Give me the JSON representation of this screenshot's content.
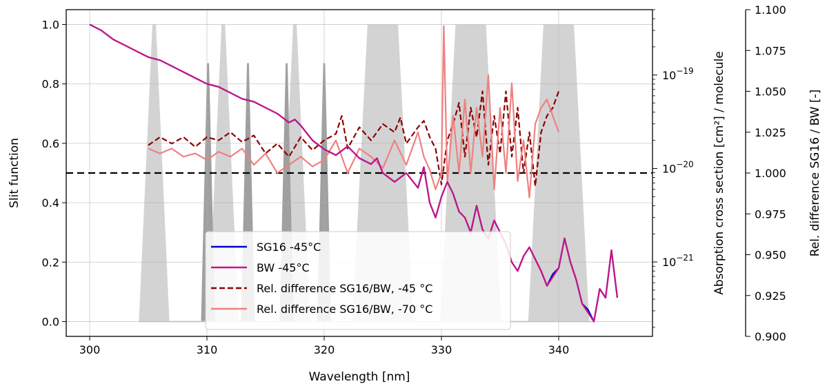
{
  "chart_data": {
    "type": "line",
    "xlabel": "Wavelength [nm]",
    "ylabel_left": "Slit function",
    "ylabel_mid": "Absorption cross section [cm²] / molecule",
    "ylabel_right": "Rel. difference SG16 / BW [-]",
    "xlim": [
      298,
      348
    ],
    "ylim_left": [
      -0.05,
      1.05
    ],
    "ylim_mid_log": [
      1.6e-22,
      5e-19
    ],
    "ylim_right": [
      0.9,
      1.1
    ],
    "grid": true,
    "legend_position": "lower-center",
    "x_ticks": [
      "300",
      "310",
      "320",
      "330",
      "340"
    ],
    "y_left_ticks": [
      "0.0",
      "0.2",
      "0.4",
      "0.6",
      "0.8",
      "1.0"
    ],
    "y_mid_ticks": [
      {
        "base": "10",
        "exp": "−19"
      },
      {
        "base": "10",
        "exp": "−20"
      },
      {
        "base": "10",
        "exp": "−21"
      }
    ],
    "y_right_ticks": [
      "0.900",
      "0.925",
      "0.950",
      "0.975",
      "1.000",
      "1.025",
      "1.050",
      "1.075",
      "1.100"
    ],
    "reference_line": {
      "axis": "right",
      "value": 1.0,
      "style": "dashed",
      "color": "#000000"
    },
    "slit_functions": [
      {
        "center": 305.5,
        "half_base": 1.3,
        "half_top": 0.15,
        "peak": 1.0,
        "color": "#d3d3d3"
      },
      {
        "center": 311.4,
        "half_base": 1.3,
        "half_top": 0.15,
        "peak": 1.0,
        "color": "#d3d3d3"
      },
      {
        "center": 317.5,
        "half_base": 1.3,
        "half_top": 0.15,
        "peak": 1.0,
        "color": "#d3d3d3"
      },
      {
        "center": 310.1,
        "half_base": 0.6,
        "half_top": 0.08,
        "peak": 0.87,
        "color": "#a0a0a0"
      },
      {
        "center": 313.5,
        "half_base": 0.6,
        "half_top": 0.08,
        "peak": 0.87,
        "color": "#a0a0a0"
      },
      {
        "center": 316.8,
        "half_base": 0.6,
        "half_top": 0.08,
        "peak": 0.87,
        "color": "#a0a0a0"
      },
      {
        "center": 320.0,
        "half_base": 0.6,
        "half_top": 0.08,
        "peak": 0.87,
        "color": "#a0a0a0"
      },
      {
        "center": 325.0,
        "half_base": 2.6,
        "half_top": 1.3,
        "peak": 1.0,
        "color": "#d3d3d3"
      },
      {
        "center": 332.5,
        "half_base": 2.6,
        "half_top": 1.3,
        "peak": 1.0,
        "color": "#d3d3d3"
      },
      {
        "center": 340.0,
        "half_base": 2.6,
        "half_top": 1.3,
        "peak": 1.0,
        "color": "#d3d3d3"
      }
    ],
    "series": [
      {
        "name": "SG16 -45°C",
        "axis": "left",
        "color": "#0000cc",
        "style": "solid",
        "x": [
          300,
          301,
          302,
          303,
          304,
          305,
          306,
          307,
          308,
          309,
          310,
          311,
          312,
          313,
          314,
          315,
          316,
          317,
          317.5,
          318,
          319,
          320,
          321,
          322,
          323,
          324,
          324.5,
          325,
          326,
          327,
          328,
          328.5,
          329,
          329.5,
          330,
          330.5,
          331,
          331.5,
          332,
          332.5,
          333,
          333.5,
          334,
          334.5,
          335,
          335.5,
          336,
          336.5,
          337,
          337.5,
          338,
          338.5,
          339,
          339.5,
          340,
          340.5,
          341,
          341.5,
          342,
          342.5,
          343,
          343.5,
          344,
          344.5,
          345
        ],
        "y": [
          1.0,
          0.98,
          0.95,
          0.93,
          0.91,
          0.89,
          0.88,
          0.86,
          0.84,
          0.82,
          0.8,
          0.79,
          0.77,
          0.75,
          0.74,
          0.72,
          0.7,
          0.67,
          0.68,
          0.66,
          0.61,
          0.58,
          0.56,
          0.59,
          0.55,
          0.53,
          0.55,
          0.5,
          0.47,
          0.5,
          0.45,
          0.52,
          0.4,
          0.35,
          0.42,
          0.47,
          0.43,
          0.37,
          0.35,
          0.3,
          0.39,
          0.31,
          0.28,
          0.34,
          0.3,
          0.26,
          0.2,
          0.17,
          0.22,
          0.25,
          0.21,
          0.17,
          0.12,
          0.16,
          0.18,
          0.28,
          0.2,
          0.14,
          0.06,
          0.04,
          0.0,
          0.11,
          0.08,
          0.24,
          0.08
        ],
        "mid_equiv_note": ""
      },
      {
        "name": "BW -45°C",
        "axis": "left",
        "color": "#c71585",
        "style": "solid",
        "x": [
          300,
          301,
          302,
          303,
          304,
          305,
          306,
          307,
          308,
          309,
          310,
          311,
          312,
          313,
          314,
          315,
          316,
          317,
          317.5,
          318,
          319,
          320,
          321,
          322,
          323,
          324,
          324.5,
          325,
          326,
          327,
          328,
          328.5,
          329,
          329.5,
          330,
          330.5,
          331,
          331.5,
          332,
          332.5,
          333,
          333.5,
          334,
          334.5,
          335,
          335.5,
          336,
          336.5,
          337,
          337.5,
          338,
          338.5,
          339,
          339.5,
          340,
          340.5,
          341,
          341.5,
          342,
          342.5,
          343,
          343.5,
          344,
          344.5,
          345
        ],
        "y": [
          1.0,
          0.98,
          0.95,
          0.93,
          0.91,
          0.89,
          0.88,
          0.86,
          0.84,
          0.82,
          0.8,
          0.79,
          0.77,
          0.75,
          0.74,
          0.72,
          0.7,
          0.67,
          0.68,
          0.66,
          0.61,
          0.58,
          0.56,
          0.59,
          0.55,
          0.53,
          0.55,
          0.5,
          0.47,
          0.5,
          0.45,
          0.52,
          0.4,
          0.35,
          0.42,
          0.47,
          0.43,
          0.37,
          0.35,
          0.3,
          0.39,
          0.31,
          0.28,
          0.34,
          0.3,
          0.26,
          0.2,
          0.17,
          0.22,
          0.25,
          0.21,
          0.17,
          0.12,
          0.15,
          0.18,
          0.28,
          0.2,
          0.14,
          0.06,
          0.03,
          0.0,
          0.11,
          0.08,
          0.24,
          0.08
        ]
      },
      {
        "name": "Rel. difference SG16/BW, -45 °C",
        "axis": "right",
        "color": "#8b0000",
        "style": "dashed",
        "x": [
          305,
          306,
          307,
          308,
          309,
          310,
          311,
          312,
          313,
          314,
          315,
          316,
          317,
          318,
          319,
          320,
          321,
          321.5,
          322,
          323,
          324,
          325,
          326,
          326.5,
          327,
          328,
          328.5,
          329,
          329.5,
          330,
          330.5,
          331,
          331.5,
          332,
          332.5,
          333,
          333.5,
          334,
          334.5,
          335,
          335.5,
          336,
          336.5,
          337,
          337.5,
          338,
          338.5,
          339,
          339.5,
          340
        ],
        "y": [
          1.017,
          1.022,
          1.018,
          1.022,
          1.016,
          1.022,
          1.02,
          1.025,
          1.019,
          1.023,
          1.012,
          1.018,
          1.01,
          1.022,
          1.014,
          1.02,
          1.024,
          1.035,
          1.015,
          1.028,
          1.02,
          1.03,
          1.025,
          1.034,
          1.018,
          1.028,
          1.032,
          1.022,
          1.015,
          0.993,
          1.02,
          1.03,
          1.043,
          1.01,
          1.04,
          1.022,
          1.05,
          1.005,
          1.035,
          1.012,
          1.05,
          1.01,
          1.04,
          1.0,
          1.025,
          0.992,
          1.025,
          1.035,
          1.04,
          1.05
        ]
      },
      {
        "name": "Rel. difference SG16/BW, -70 °C",
        "axis": "right",
        "color": "#f08080",
        "style": "solid",
        "x": [
          305,
          306,
          307,
          308,
          309,
          310,
          311,
          312,
          313,
          314,
          315,
          316,
          317,
          318,
          319,
          320,
          321,
          322,
          323,
          324,
          325,
          326,
          327,
          328,
          328.5,
          329,
          329.5,
          330,
          330.2,
          330.5,
          331,
          331.5,
          332,
          332.5,
          333,
          333.5,
          334,
          334.5,
          335,
          335.5,
          336,
          336.5,
          337,
          337.5,
          338,
          338.5,
          339,
          339.5,
          340
        ],
        "y": [
          1.015,
          1.012,
          1.015,
          1.01,
          1.012,
          1.008,
          1.013,
          1.01,
          1.015,
          1.005,
          1.012,
          1.0,
          1.005,
          1.01,
          1.004,
          1.008,
          1.02,
          1.0,
          1.015,
          1.01,
          1.003,
          1.02,
          1.005,
          1.025,
          1.01,
          1.002,
          0.99,
          1.0,
          1.09,
          0.995,
          1.035,
          1.0,
          1.045,
          1.0,
          1.04,
          1.01,
          1.06,
          0.99,
          1.04,
          1.0,
          1.055,
          0.995,
          1.02,
          0.985,
          1.03,
          1.04,
          1.045,
          1.035,
          1.025
        ]
      }
    ]
  }
}
